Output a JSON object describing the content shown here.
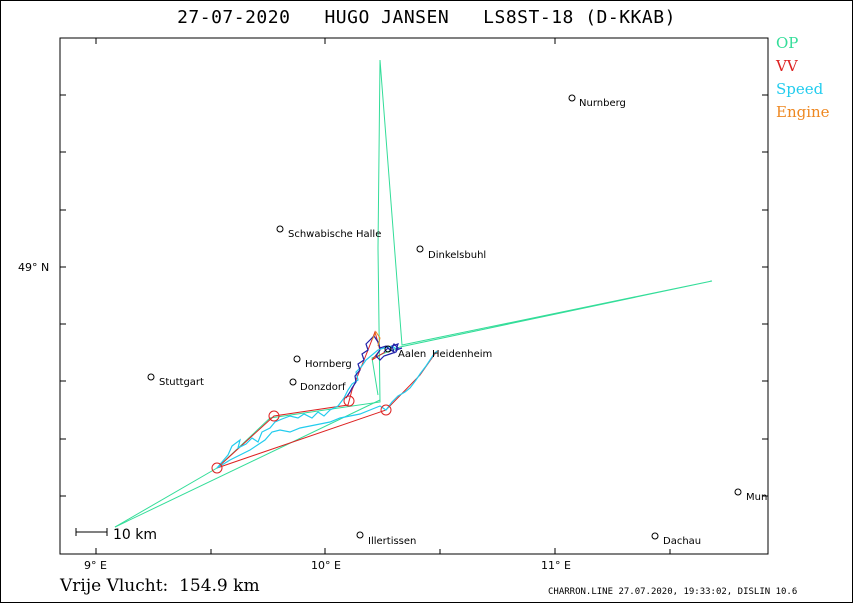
{
  "header": {
    "title": "27-07-2020   HUGO JANSEN   LS8ST-18 (D-KKAB)"
  },
  "legend": [
    {
      "label": "OP",
      "color": "#33dd99"
    },
    {
      "label": "VV",
      "color": "#dd2222"
    },
    {
      "label": "Speed",
      "color": "#22ccee"
    },
    {
      "label": "Engine",
      "color": "#ee8822"
    }
  ],
  "axes": {
    "x_ticks": [
      "9° E",
      "10° E",
      "11° E"
    ],
    "y_ticks": [
      "49° N"
    ]
  },
  "scale_bar": {
    "label": "10 km"
  },
  "places": [
    {
      "name": "Nurnberg"
    },
    {
      "name": "Schwabische Halle"
    },
    {
      "name": "Dinkelsbuhl"
    },
    {
      "name": "Aalen"
    },
    {
      "name": "Heidenheim"
    },
    {
      "name": "Hornberg"
    },
    {
      "name": "Stuttgart"
    },
    {
      "name": "Donzdorf"
    },
    {
      "name": "Illertissen"
    },
    {
      "name": "Dachau"
    },
    {
      "name": "Mun"
    }
  ],
  "footer": {
    "distance": "Vrije Vlucht:  154.9 km",
    "credit": "CHARRON.LINE 27.07.2020, 19:33:02, DISLIN 10.6"
  },
  "colors": {
    "op": "#33dd99",
    "vv": "#dd2222",
    "speed": "#22ccee",
    "engine": "#ee8822",
    "climb": "#2222aa"
  }
}
